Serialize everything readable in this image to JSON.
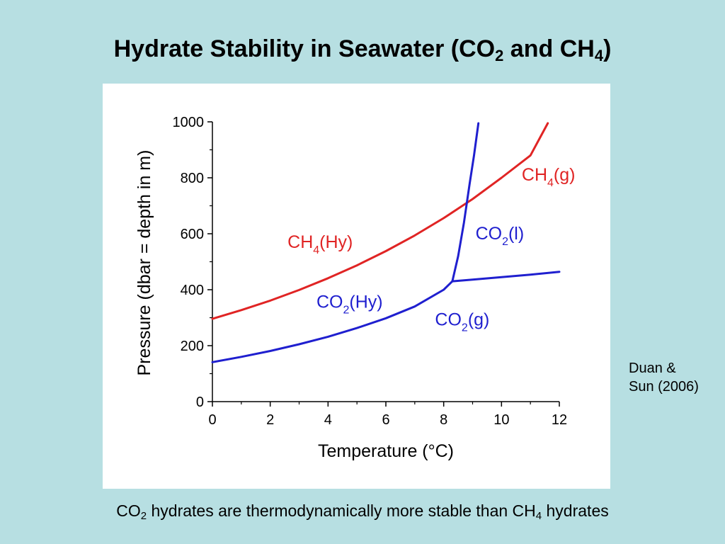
{
  "slide": {
    "title_prefix": "Hydrate Stability in Seawater (CO",
    "title_sub_1": "2",
    "title_middle": " and CH",
    "title_sub_2": "4",
    "title_suffix": ")",
    "citation_line1": "Duan &",
    "citation_line2": "Sun (2006)",
    "caption_prefix": "CO",
    "caption_sub_1": "2",
    "caption_middle": " hydrates are thermodynamically more stable than CH",
    "caption_sub_2": "4",
    "caption_suffix": " hydrates"
  },
  "chart_data": {
    "type": "line",
    "xlabel": "Temperature (°C)",
    "ylabel": "Pressure (dbar = depth in m)",
    "xlim": [
      0,
      12
    ],
    "ylim": [
      0,
      1000
    ],
    "xticks": [
      "0",
      "2",
      "4",
      "6",
      "8",
      "10",
      "12"
    ],
    "yticks": [
      "0",
      "200",
      "400",
      "600",
      "800",
      "1000"
    ],
    "grid": false,
    "legend": "none",
    "colors": {
      "ch4": "#e02424",
      "co2": "#1f1fcf",
      "axis": "#000000"
    },
    "series": [
      {
        "key": "ch4-hydrate",
        "x": [
          0,
          1,
          2,
          3,
          4,
          5,
          6,
          7,
          8,
          9,
          10,
          11,
          11.6
        ],
        "y": [
          296,
          327,
          361,
          399,
          441,
          487,
          538,
          594,
          656,
          724,
          800,
          880,
          995
        ]
      },
      {
        "key": "co2-hydrate",
        "x": [
          0,
          1,
          2,
          3,
          4,
          5,
          6,
          7,
          8,
          8.3
        ],
        "y": [
          141,
          160,
          181,
          205,
          232,
          263,
          298,
          340,
          400,
          430
        ]
      },
      {
        "key": "co2-liquid",
        "x": [
          8.3,
          8.5,
          8.7,
          8.9,
          9.05,
          9.2
        ],
        "y": [
          430,
          520,
          640,
          780,
          880,
          995
        ]
      },
      {
        "key": "co2-vapor",
        "x": [
          8.3,
          9,
          10,
          11,
          12
        ],
        "y": [
          430,
          436,
          445,
          454,
          464
        ]
      }
    ],
    "annotations": [
      {
        "key": "ch4-gas",
        "base": "CH",
        "sub": "4",
        "rest": "(g)",
        "x": 10.7,
        "y": 790,
        "color": "ch4"
      },
      {
        "key": "ch4-hy",
        "base": "CH",
        "sub": "4",
        "rest": "(Hy)",
        "x": 2.6,
        "y": 550,
        "color": "ch4"
      },
      {
        "key": "co2-l",
        "base": "CO",
        "sub": "2",
        "rest": "(l)",
        "x": 9.1,
        "y": 580,
        "color": "co2"
      },
      {
        "key": "co2-hy",
        "base": "CO",
        "sub": "2",
        "rest": "(Hy)",
        "x": 3.6,
        "y": 335,
        "color": "co2"
      },
      {
        "key": "co2-g",
        "base": "CO",
        "sub": "2",
        "rest": "(g)",
        "x": 7.7,
        "y": 272,
        "color": "co2"
      }
    ]
  }
}
